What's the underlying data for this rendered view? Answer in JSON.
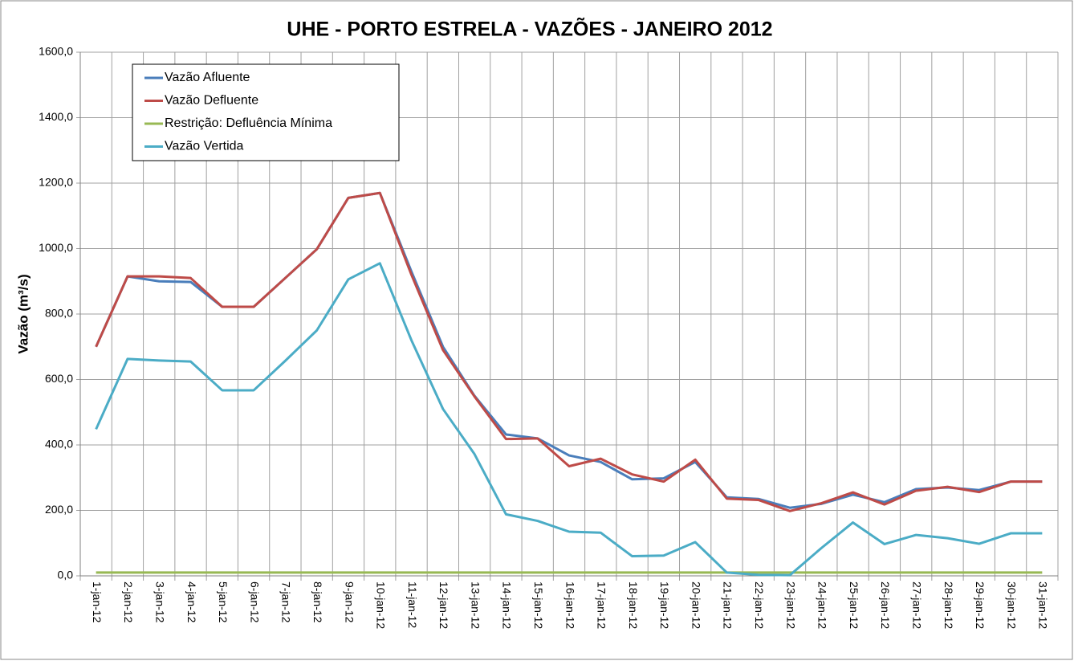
{
  "chart_data": {
    "type": "line",
    "title": "UHE - PORTO ESTRELA - VAZÕES - JANEIRO 2012",
    "y_label": "Vazão (m³/s)",
    "categories": [
      "1-jan-12",
      "2-jan-12",
      "3-jan-12",
      "4-jan-12",
      "5-jan-12",
      "6-jan-12",
      "7-jan-12",
      "8-jan-12",
      "9-jan-12",
      "10-jan-12",
      "11-jan-12",
      "12-jan-12",
      "13-jan-12",
      "14-jan-12",
      "15-jan-12",
      "16-jan-12",
      "17-jan-12",
      "18-jan-12",
      "19-jan-12",
      "20-jan-12",
      "21-jan-12",
      "22-jan-12",
      "23-jan-12",
      "24-jan-12",
      "25-jan-12",
      "26-jan-12",
      "27-jan-12",
      "28-jan-12",
      "29-jan-12",
      "30-jan-12",
      "31-jan-12"
    ],
    "series": [
      {
        "name": "Vazão Afluente",
        "color": "#4a7ebb",
        "values": [
          700,
          915,
          900,
          898,
          822,
          822,
          910,
          998,
          1155,
          1170,
          930,
          700,
          550,
          432,
          420,
          368,
          348,
          295,
          298,
          348,
          240,
          235,
          208,
          220,
          248,
          225,
          265,
          270,
          262,
          288,
          288
        ]
      },
      {
        "name": "Vazão Defluente",
        "color": "#be4b48",
        "values": [
          700,
          915,
          915,
          910,
          822,
          822,
          910,
          998,
          1155,
          1170,
          920,
          690,
          548,
          418,
          420,
          335,
          358,
          310,
          288,
          355,
          236,
          232,
          198,
          222,
          255,
          218,
          260,
          272,
          256,
          288,
          288
        ]
      },
      {
        "name": "Restrição: Defluência Mínima",
        "color": "#98b954",
        "values": [
          10,
          10,
          10,
          10,
          10,
          10,
          10,
          10,
          10,
          10,
          10,
          10,
          10,
          10,
          10,
          10,
          10,
          10,
          10,
          10,
          10,
          10,
          10,
          10,
          10,
          10,
          10,
          10,
          10,
          10,
          10
        ]
      },
      {
        "name": "Vazão Vertida",
        "color": "#4bacc6",
        "values": [
          448,
          663,
          658,
          655,
          567,
          567,
          657,
          750,
          906,
          955,
          720,
          510,
          372,
          188,
          168,
          135,
          132,
          60,
          62,
          103,
          10,
          3,
          2,
          85,
          163,
          97,
          125,
          115,
          98,
          130,
          130
        ]
      }
    ],
    "ylim": [
      0,
      1600
    ],
    "yticks": [
      {
        "value": 0,
        "label": "0,0"
      },
      {
        "value": 200,
        "label": "200,0"
      },
      {
        "value": 400,
        "label": "400,0"
      },
      {
        "value": 600,
        "label": "600,0"
      },
      {
        "value": 800,
        "label": "800,0"
      },
      {
        "value": 1000,
        "label": "1000,0"
      },
      {
        "value": 1200,
        "label": "1200,0"
      },
      {
        "value": 1400,
        "label": "1400,0"
      },
      {
        "value": 1600,
        "label": "1600,0"
      }
    ],
    "grid": true,
    "legend": "upper left"
  }
}
